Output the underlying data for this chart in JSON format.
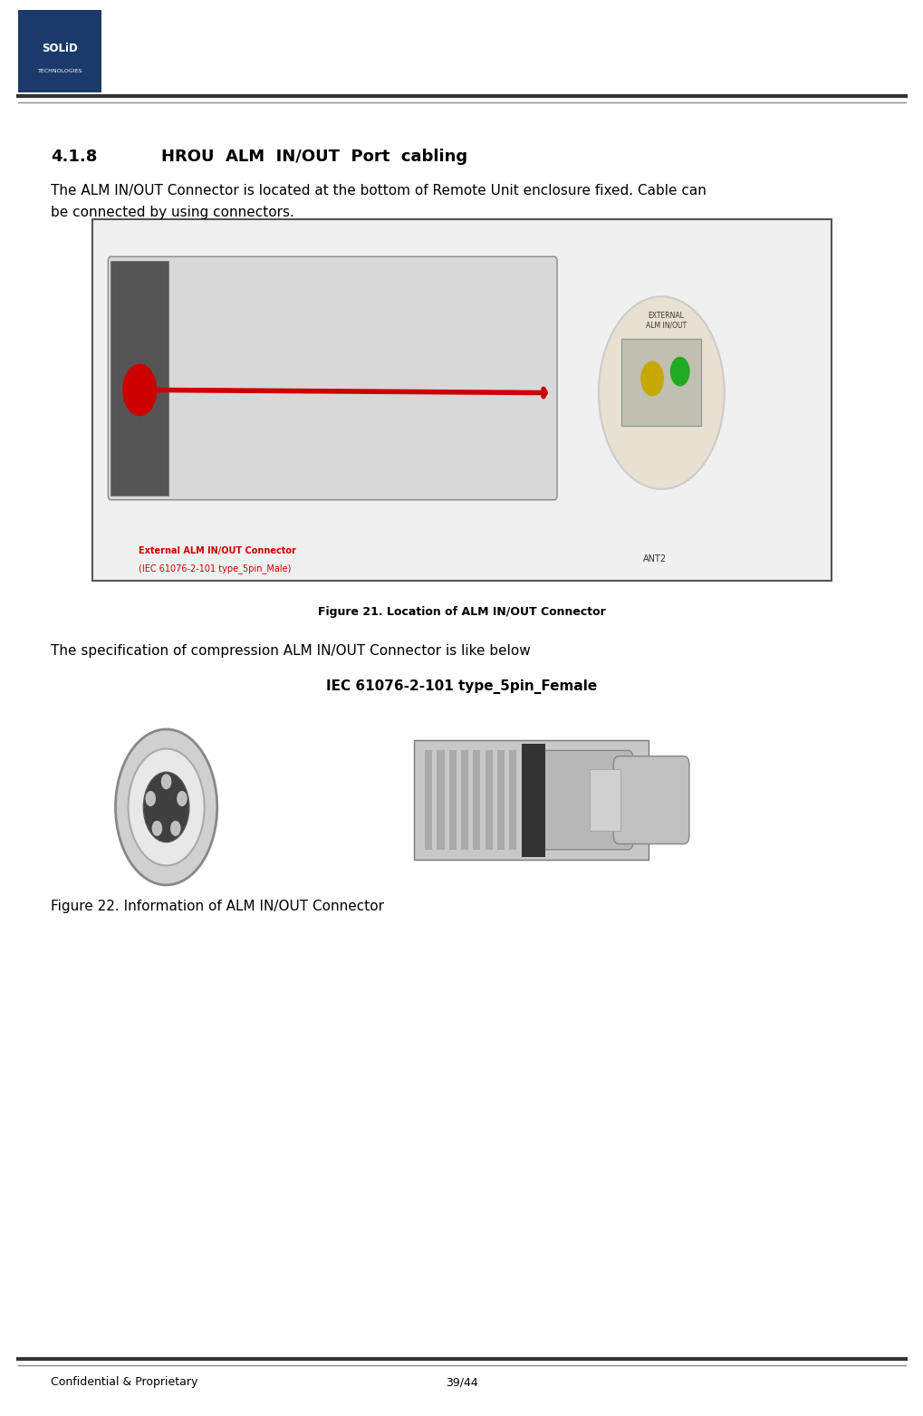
{
  "page_width": 10.2,
  "page_height": 15.63,
  "bg_color": "#ffffff",
  "header_logo_box_color": "#1a3a6b",
  "header_line_color": "#222222",
  "footer_line_color": "#222222",
  "footer_left": "Confidential & Proprietary",
  "footer_right": "39/44",
  "footer_fontsize": 9,
  "section_number": "4.1.8",
  "section_title": "HROU  ALM  IN/OUT  Port  cabling",
  "section_title_fontsize": 13,
  "body_text1": "The ALM IN/OUT Connector is located at the bottom of Remote Unit enclosure fixed. Cable can",
  "body_text2": "be connected by using connectors.",
  "body_fontsize": 11,
  "fig21_caption": "Figure 21. Location of ALM IN/OUT Connector",
  "fig21_caption_fontsize": 9,
  "fig22_intro": "The specification of compression ALM IN/OUT Connector is like below",
  "fig22_intro_fontsize": 11,
  "fig22_title": "IEC 61076-2-101 type_5pin_Female",
  "fig22_title_fontsize": 11,
  "fig22_caption": "Figure 22. Information of ALM IN/OUT Connector",
  "fig22_caption_fontsize": 11,
  "logo_text1": "SOLiD",
  "logo_text2": "TECHNOLOGIES",
  "solid_color": "#1a3a6b"
}
